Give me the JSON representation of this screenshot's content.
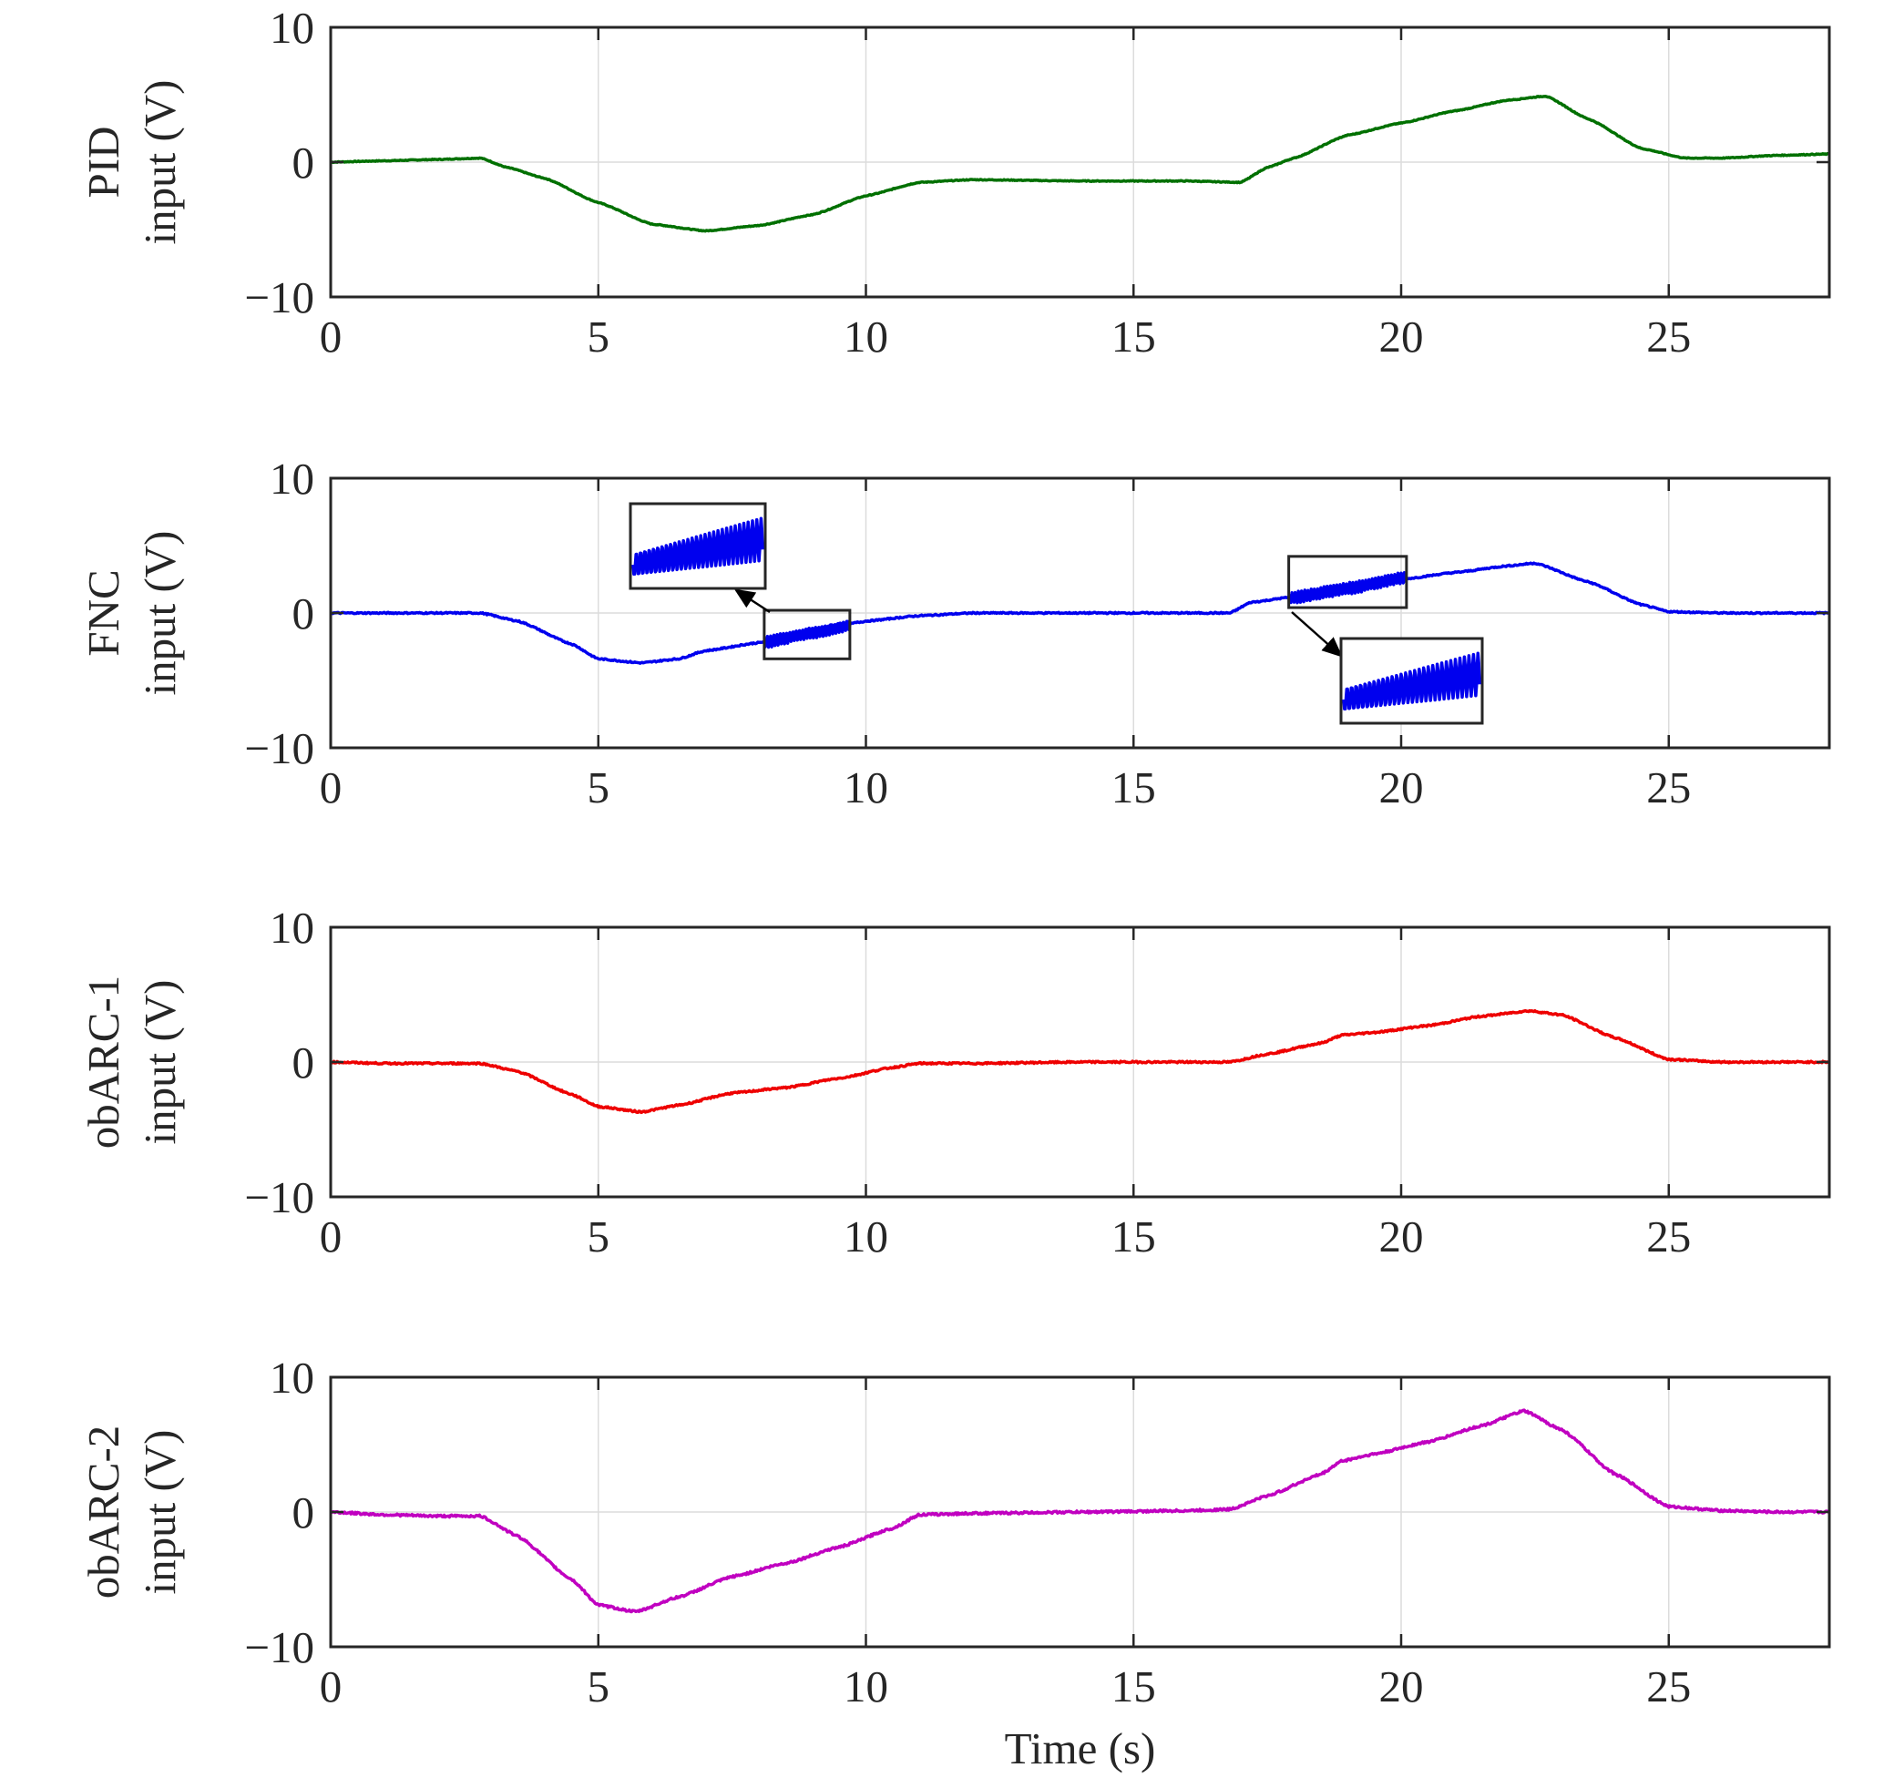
{
  "chart_data": [
    {
      "type": "line",
      "ylabel_lines": [
        "PID",
        "input (V)"
      ],
      "xlabel": "",
      "xlim": [
        0,
        28
      ],
      "ylim": [
        -10,
        10
      ],
      "xticks": [
        0,
        5,
        10,
        15,
        20,
        25
      ],
      "yticks": [
        -10,
        0,
        10
      ],
      "xtick_labels": [
        "0",
        "5",
        "10",
        "15",
        "20",
        "25"
      ],
      "ytick_labels": [
        "−10",
        "0",
        "10"
      ],
      "grid": true,
      "series": [
        {
          "color": "#007000",
          "x": [
            0,
            1,
            2,
            2.8,
            3.3,
            4,
            5,
            6,
            7,
            8,
            9,
            10,
            11,
            12,
            14,
            16,
            17,
            17.5,
            18,
            19,
            20,
            21,
            22,
            22.7,
            23.5,
            24.5,
            25.3,
            26,
            27,
            28
          ],
          "y": [
            0,
            0.1,
            0.2,
            0.3,
            -0.4,
            -1.2,
            -3,
            -4.6,
            -5.1,
            -4.7,
            -3.9,
            -2.5,
            -1.5,
            -1.3,
            -1.4,
            -1.4,
            -1.5,
            -0.4,
            0.3,
            2,
            2.9,
            3.8,
            4.6,
            4.9,
            3.2,
            1,
            0.3,
            0.3,
            0.5,
            0.6
          ]
        }
      ]
    },
    {
      "type": "line",
      "ylabel_lines": [
        "FNC",
        "input (V)"
      ],
      "xlabel": "",
      "xlim": [
        0,
        28
      ],
      "ylim": [
        -10,
        10
      ],
      "xticks": [
        0,
        5,
        10,
        15,
        20,
        25
      ],
      "yticks": [
        -10,
        0,
        10
      ],
      "xtick_labels": [
        "0",
        "5",
        "10",
        "15",
        "20",
        "25"
      ],
      "ytick_labels": [
        "−10",
        "0",
        "10"
      ],
      "grid": true,
      "series": [
        {
          "color": "#0000ee",
          "x": [
            0,
            1,
            2,
            2.8,
            3.5,
            4.5,
            5,
            5.8,
            6.5,
            7,
            8,
            9,
            10,
            11,
            12,
            14,
            16,
            16.8,
            17.2,
            18,
            19,
            20,
            21,
            22,
            22.5,
            23.5,
            24.5,
            25,
            26,
            27,
            28
          ],
          "y": [
            0,
            0,
            0,
            0,
            -0.6,
            -2.3,
            -3.4,
            -3.7,
            -3.4,
            -2.8,
            -2.2,
            -1.4,
            -0.6,
            -0.2,
            0,
            0,
            0,
            0,
            0.8,
            1.2,
            1.8,
            2.5,
            3,
            3.5,
            3.7,
            2.3,
            0.6,
            0.1,
            0,
            0,
            0
          ]
        }
      ],
      "zoom_regions": [
        {
          "x": [
            8.1,
            9.7
          ],
          "y": [
            -3.4,
            0.2
          ]
        },
        {
          "x": [
            17.9,
            20.1
          ],
          "y": [
            0.4,
            4.2
          ]
        }
      ]
    },
    {
      "type": "line",
      "ylabel_lines": [
        "obARC-1",
        "input (V)"
      ],
      "xlabel": "",
      "xlim": [
        0,
        28
      ],
      "ylim": [
        -10,
        10
      ],
      "xticks": [
        0,
        5,
        10,
        15,
        20,
        25
      ],
      "yticks": [
        -10,
        0,
        10
      ],
      "xtick_labels": [
        "0",
        "5",
        "10",
        "15",
        "20",
        "25"
      ],
      "ytick_labels": [
        "−10",
        "0",
        "10"
      ],
      "grid": true,
      "series": [
        {
          "color": "#ee0000",
          "x": [
            0,
            1,
            2,
            2.8,
            3.5,
            4.5,
            5,
            5.8,
            6.5,
            7.5,
            8.5,
            9.5,
            10.5,
            11,
            12,
            14,
            16,
            16.8,
            17.5,
            18.5,
            18.9,
            19.5,
            20.5,
            21.5,
            22.4,
            23,
            24,
            25,
            26,
            27,
            28
          ],
          "y": [
            0,
            -0.1,
            -0.1,
            -0.1,
            -0.7,
            -2.4,
            -3.3,
            -3.7,
            -3.2,
            -2.3,
            -1.9,
            -1.2,
            -0.4,
            -0.1,
            -0.1,
            0,
            0,
            0,
            0.6,
            1.4,
            2,
            2.2,
            2.7,
            3.4,
            3.8,
            3.5,
            1.8,
            0.2,
            0,
            0,
            0
          ]
        }
      ]
    },
    {
      "type": "line",
      "ylabel_lines": [
        "obARC-2",
        "input (V)"
      ],
      "xlabel_lines": [
        "Time (s)"
      ],
      "xlim": [
        0,
        28
      ],
      "ylim": [
        -10,
        10
      ],
      "xticks": [
        0,
        5,
        10,
        15,
        20,
        25
      ],
      "yticks": [
        -10,
        0,
        10
      ],
      "xtick_labels": [
        "0",
        "5",
        "10",
        "15",
        "20",
        "25"
      ],
      "ytick_labels": [
        "−10",
        "0",
        "10"
      ],
      "grid": true,
      "series": [
        {
          "color": "#c000c0",
          "x": [
            0,
            1,
            2,
            2.8,
            3.5,
            4.5,
            5,
            5.7,
            6.5,
            7.5,
            8.5,
            9.5,
            10.5,
            11,
            12,
            14,
            16,
            16.8,
            17.5,
            18.5,
            18.9,
            19.5,
            20.5,
            21.5,
            22.3,
            23,
            24,
            25,
            26,
            27,
            28
          ],
          "y": [
            0,
            -0.2,
            -0.3,
            -0.3,
            -1.8,
            -5,
            -6.9,
            -7.4,
            -6.3,
            -4.8,
            -3.8,
            -2.6,
            -1.2,
            -0.2,
            -0.1,
            0,
            0.1,
            0.2,
            1.2,
            2.8,
            3.8,
            4.3,
            5.2,
            6.4,
            7.5,
            6.1,
            2.8,
            0.4,
            0.1,
            0,
            0
          ]
        }
      ]
    }
  ]
}
